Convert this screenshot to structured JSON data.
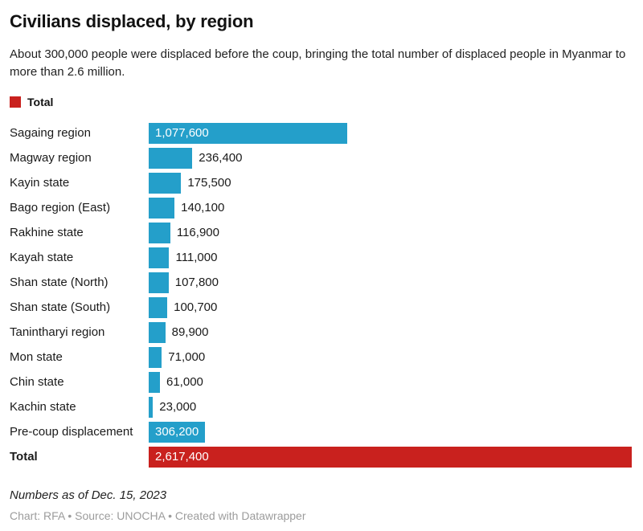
{
  "header": {
    "title": "Civilians displaced, by region",
    "subtitle": "About 300,000 people were displaced before the coup, bringing the total number of displaced people in Myanmar to more than 2.6 million."
  },
  "legend": {
    "label": "Total",
    "color": "#c9211e"
  },
  "colors": {
    "bar": "#249fca",
    "total_bar": "#c9211e",
    "value_inside_text": "#ffffff",
    "value_outside_text": "#1a1a1a"
  },
  "chart_data": {
    "type": "bar",
    "orientation": "horizontal",
    "title": "Civilians displaced, by region",
    "xlabel": "",
    "ylabel": "",
    "max_value": 2617400,
    "grid": false,
    "legend_position": "top",
    "categories": [
      "Sagaing region",
      "Magway region",
      "Kayin state",
      "Bago region (East)",
      "Rakhine state",
      "Kayah state",
      "Shan state (North)",
      "Shan state (South)",
      "Tanintharyi region",
      "Mon state",
      "Chin state",
      "Kachin state",
      "Pre-coup displacement",
      "Total"
    ],
    "values": [
      1077600,
      236400,
      175500,
      140100,
      116900,
      111000,
      107800,
      100700,
      89900,
      71000,
      61000,
      23000,
      306200,
      2617400
    ],
    "rows": [
      {
        "label": "Sagaing region",
        "value": 1077600,
        "display": "1,077,600",
        "inside": true,
        "is_total": false
      },
      {
        "label": "Magway region",
        "value": 236400,
        "display": "236,400",
        "inside": false,
        "is_total": false
      },
      {
        "label": "Kayin state",
        "value": 175500,
        "display": "175,500",
        "inside": false,
        "is_total": false
      },
      {
        "label": "Bago region (East)",
        "value": 140100,
        "display": "140,100",
        "inside": false,
        "is_total": false
      },
      {
        "label": "Rakhine state",
        "value": 116900,
        "display": "116,900",
        "inside": false,
        "is_total": false
      },
      {
        "label": "Kayah state",
        "value": 111000,
        "display": "111,000",
        "inside": false,
        "is_total": false
      },
      {
        "label": "Shan state (North)",
        "value": 107800,
        "display": "107,800",
        "inside": false,
        "is_total": false
      },
      {
        "label": "Shan state (South)",
        "value": 100700,
        "display": "100,700",
        "inside": false,
        "is_total": false
      },
      {
        "label": "Tanintharyi region",
        "value": 89900,
        "display": "89,900",
        "inside": false,
        "is_total": false
      },
      {
        "label": "Mon state",
        "value": 71000,
        "display": "71,000",
        "inside": false,
        "is_total": false
      },
      {
        "label": "Chin state",
        "value": 61000,
        "display": "61,000",
        "inside": false,
        "is_total": false
      },
      {
        "label": "Kachin state",
        "value": 23000,
        "display": "23,000",
        "inside": false,
        "is_total": false
      },
      {
        "label": "Pre-coup displacement",
        "value": 306200,
        "display": "306,200",
        "inside": true,
        "is_total": false
      },
      {
        "label": "Total",
        "value": 2617400,
        "display": "2,617,400",
        "inside": true,
        "is_total": true
      }
    ]
  },
  "footer": {
    "note": "Numbers as of Dec. 15, 2023",
    "byline": "Chart: RFA • Source: UNOCHA • Created with Datawrapper"
  }
}
